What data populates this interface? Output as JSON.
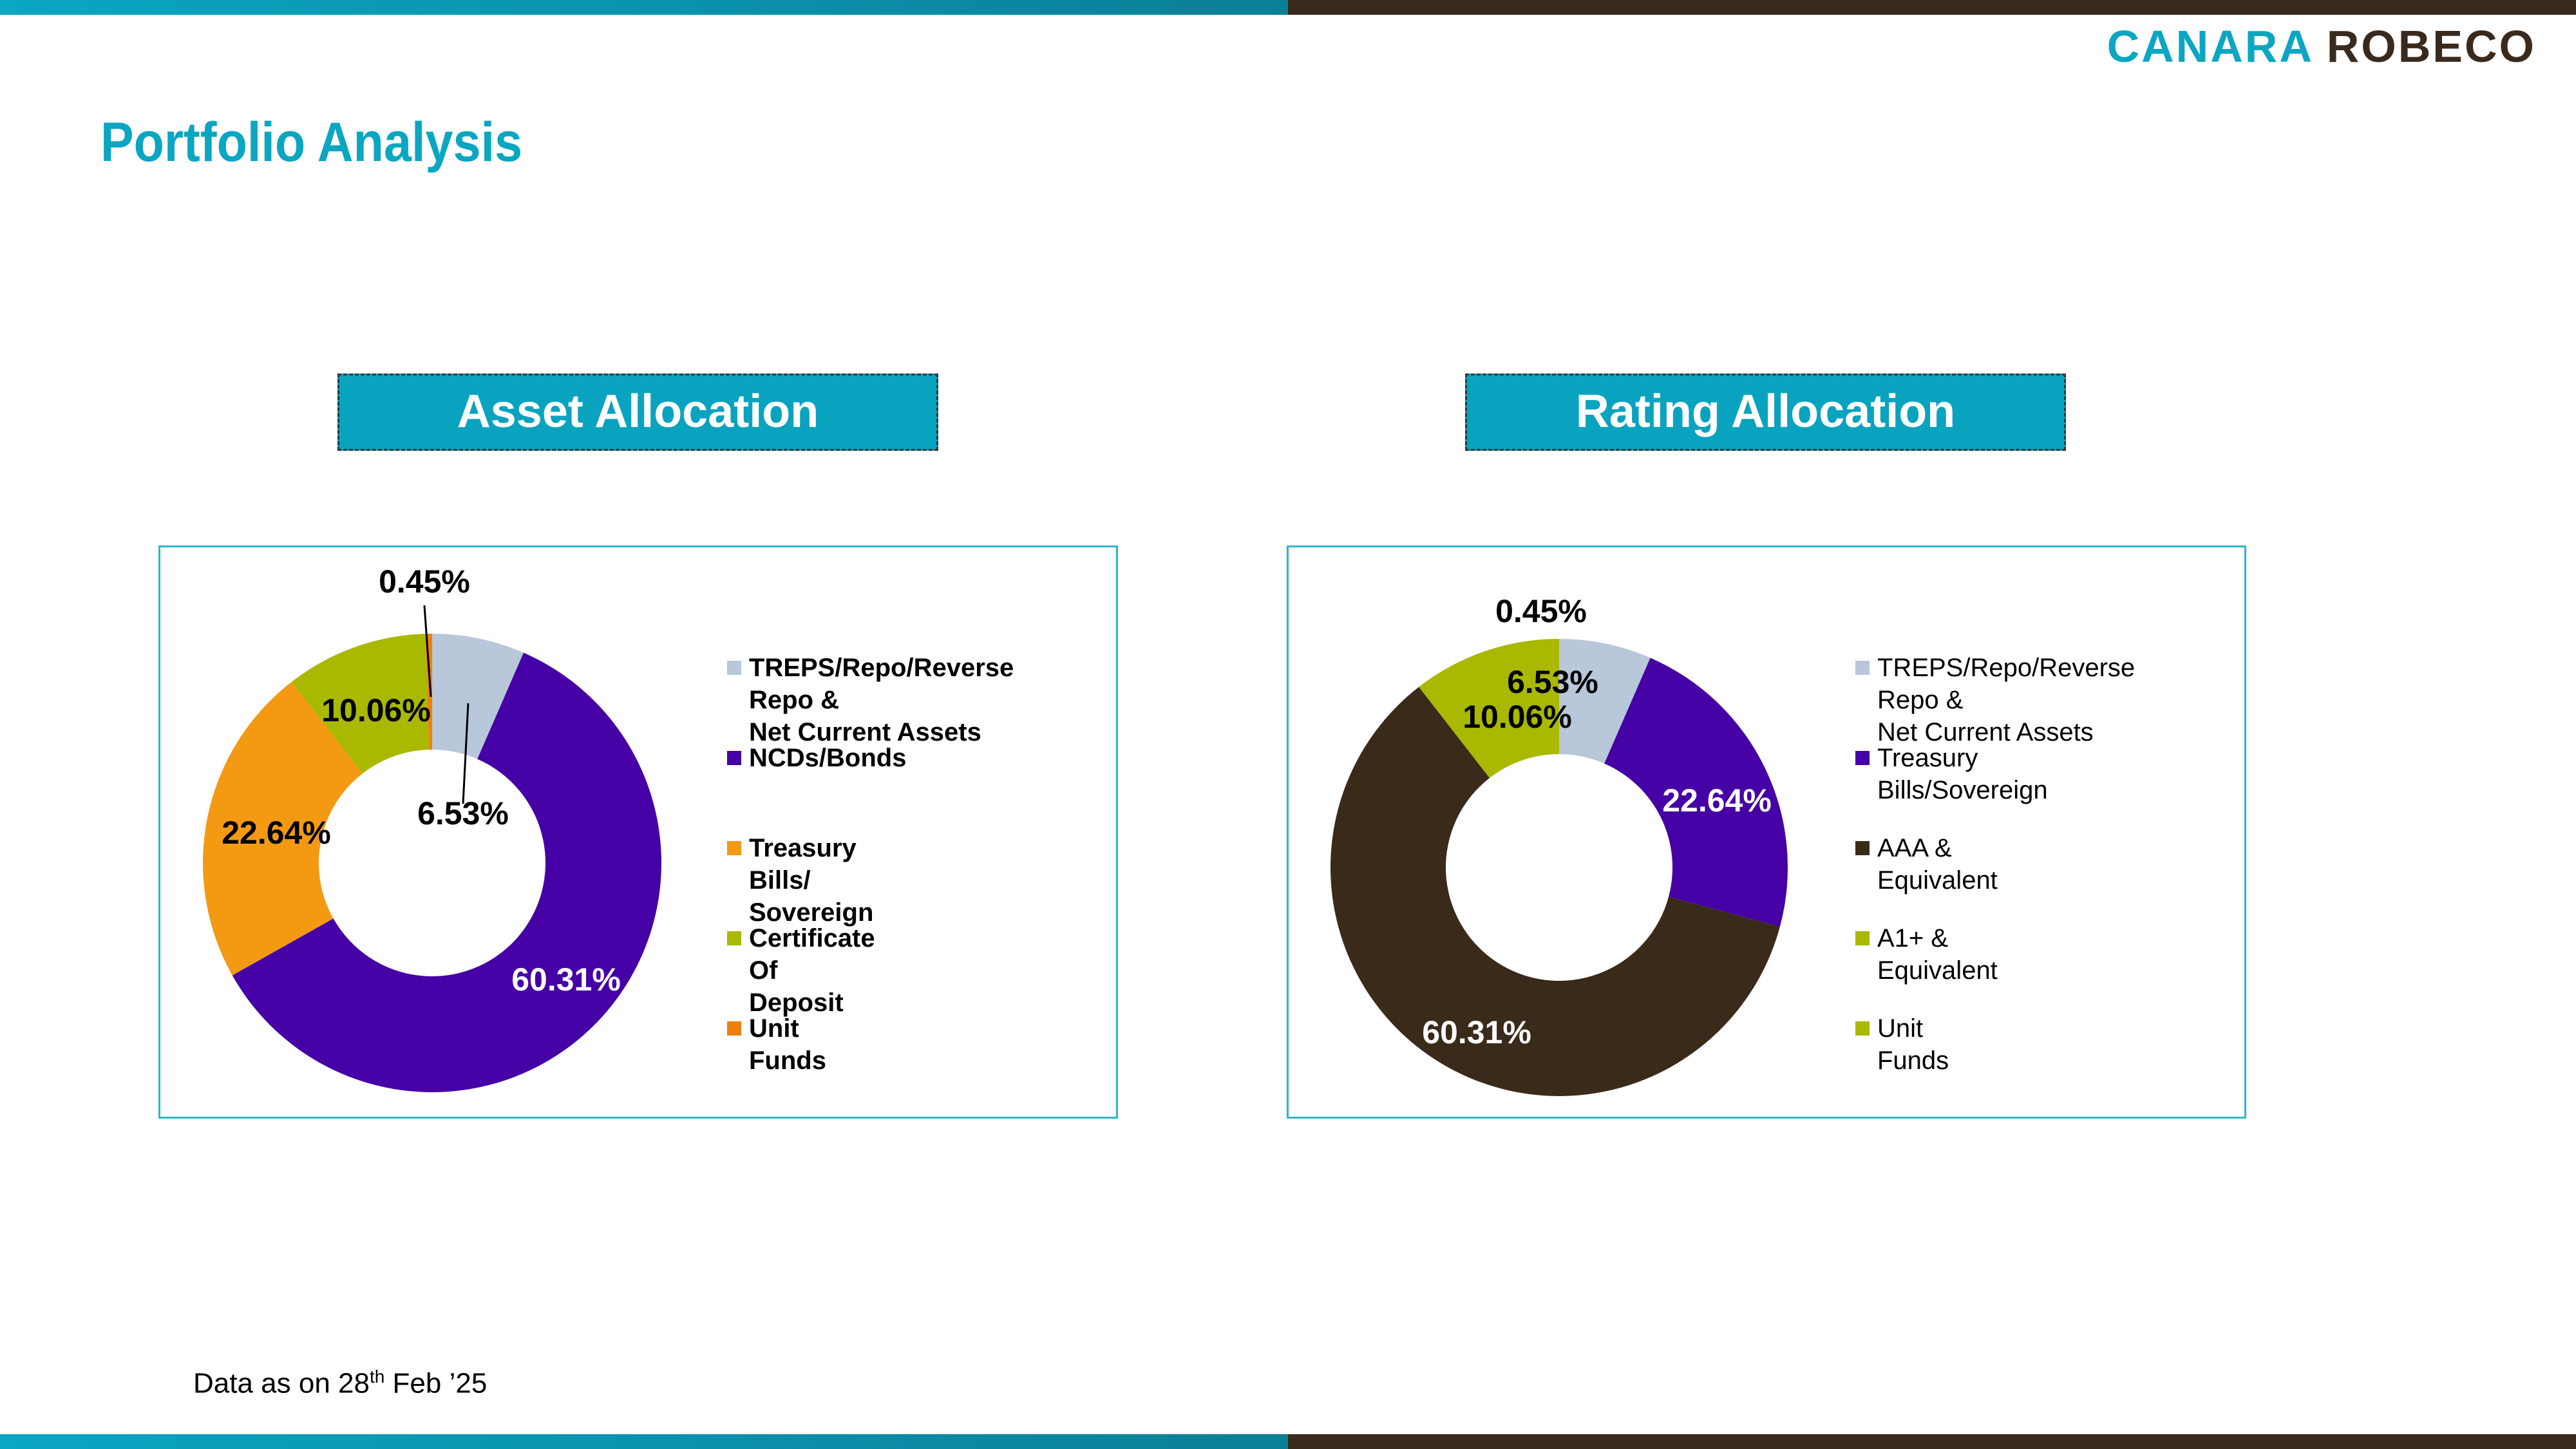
{
  "brand": {
    "logo_part1": "CANARA",
    "logo_part2": "ROBECO",
    "color_teal": "#0aa6c2",
    "color_brown": "#3a2a1e"
  },
  "page": {
    "title": "Portfolio Analysis"
  },
  "sections": {
    "asset_title": "Asset  Allocation",
    "rating_title": "Rating Allocation"
  },
  "footnote": {
    "prefix": "Data as on 28",
    "sup": "th",
    "suffix": " Feb  ’25"
  },
  "chart_data": [
    {
      "type": "pie",
      "style": "donut",
      "title": "Asset  Allocation",
      "legend_position": "right",
      "slices": [
        {
          "name": "TREPS/Repo/Reverse Repo & Net Current Assets",
          "value": 6.53,
          "label": "6.53%",
          "color": "#b8c7d9"
        },
        {
          "name": "NCDs/Bonds",
          "value": 60.31,
          "label": "60.31%",
          "color": "#4500a6"
        },
        {
          "name": "Treasury Bills/ Sovereign",
          "value": 22.64,
          "label": "22.64%",
          "color": "#f39a12"
        },
        {
          "name": "Certificate Of Deposit",
          "value": 10.06,
          "label": "10.06%",
          "color": "#a9b800"
        },
        {
          "name": "Unit Funds",
          "value": 0.45,
          "label": "0.45%",
          "color": "#f07f10"
        }
      ],
      "legend": [
        {
          "label": "TREPS/Repo/Reverse Repo &",
          "label2": "Net Current Assets",
          "color": "#b8c7d9"
        },
        {
          "label": "NCDs/Bonds",
          "color": "#4500a6"
        },
        {
          "label": "Treasury Bills/ Sovereign",
          "color": "#f39a12"
        },
        {
          "label": "Certificate Of Deposit",
          "color": "#a9b800"
        },
        {
          "label": "Unit Funds",
          "color": "#f07f10"
        }
      ]
    },
    {
      "type": "pie",
      "style": "donut",
      "title": "Rating Allocation",
      "legend_position": "right",
      "slices": [
        {
          "name": "TREPS/Repo/Reverse Repo & Net Current Assets",
          "value": 6.53,
          "label": "6.53%",
          "color": "#b8c7d9"
        },
        {
          "name": "Treasury Bills/Sovereign",
          "value": 22.64,
          "label": "22.64%",
          "color": "#4500a6"
        },
        {
          "name": "AAA & Equivalent",
          "value": 60.31,
          "label": "60.31%",
          "color": "#3a2a1a"
        },
        {
          "name": "A1+ & Equivalent",
          "value": 10.06,
          "label": "10.06%",
          "color": "#a9b800"
        },
        {
          "name": "Unit Funds",
          "value": 0.45,
          "label": "0.45%",
          "color": "#a9b800"
        }
      ],
      "legend": [
        {
          "label": "TREPS/Repo/Reverse Repo &",
          "label2": "Net Current Assets",
          "color": "#b8c7d9"
        },
        {
          "label": "Treasury Bills/Sovereign",
          "color": "#4500a6"
        },
        {
          "label": "AAA & Equivalent",
          "color": "#3a2a1a"
        },
        {
          "label": "A1+ & Equivalent",
          "color": "#a9b800"
        },
        {
          "label": "Unit Funds",
          "color": "#a9b800"
        }
      ]
    }
  ]
}
